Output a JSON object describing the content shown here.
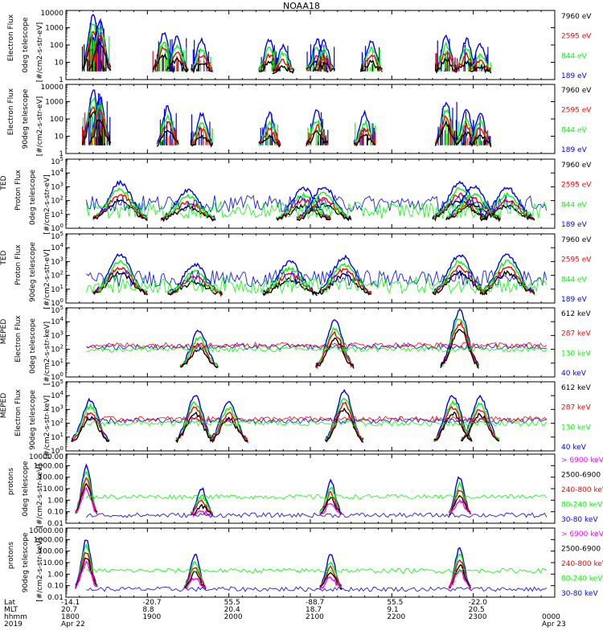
{
  "title": "NOAA18",
  "colors": {
    "blue": "#0000ff",
    "red": "#ff0000",
    "green": "#00ff00",
    "black": "#000000",
    "magenta": "#ff00ff",
    "orange": "#ff8c00"
  },
  "chart_data": [
    {
      "type": "scatter",
      "panel": "ted-electron-0deg",
      "ylabel": [
        "Electron Flux",
        "0deg telescope",
        "[#/cm2-s-str-eV]"
      ],
      "yscale": "log",
      "ylim": [
        1,
        10000
      ],
      "ytick_labels": [
        "1",
        "10",
        "100",
        "1000",
        "10000"
      ],
      "legend": [
        {
          "name": "7960 eV",
          "color": "black"
        },
        {
          "name": "2595 eV",
          "color": "red"
        },
        {
          "name": "844 eV",
          "color": "green"
        },
        {
          "name": "189 eV",
          "color": "blue"
        }
      ],
      "bursts": [
        {
          "t": "18:20",
          "peak": 5000
        },
        {
          "t": "18:25",
          "peak": 3000
        },
        {
          "t": "19:12",
          "peak": 500
        },
        {
          "t": "19:22",
          "peak": 300
        },
        {
          "t": "19:40",
          "peak": 200
        },
        {
          "t": "20:30",
          "peak": 200
        },
        {
          "t": "20:40",
          "peak": 100
        },
        {
          "t": "21:05",
          "peak": 200
        },
        {
          "t": "21:10",
          "peak": 150
        },
        {
          "t": "21:45",
          "peak": 200
        },
        {
          "t": "22:40",
          "peak": 300
        },
        {
          "t": "22:55",
          "peak": 200
        },
        {
          "t": "23:05",
          "peak": 100
        }
      ]
    },
    {
      "type": "scatter",
      "panel": "ted-electron-90deg",
      "ylabel": [
        "Electron Flux",
        "90deg telescope",
        "[#/cm2-s-str-eV]"
      ],
      "yscale": "log",
      "ylim": [
        1,
        10000
      ],
      "ytick_labels": [
        "1",
        "10",
        "100",
        "1000",
        "10000"
      ],
      "legend": [
        {
          "name": "7960 eV",
          "color": "black"
        },
        {
          "name": "2595 eV",
          "color": "red"
        },
        {
          "name": "844 eV",
          "color": "green"
        },
        {
          "name": "189 eV",
          "color": "blue"
        }
      ],
      "bursts": [
        {
          "t": "18:20",
          "peak": 5000
        },
        {
          "t": "18:25",
          "peak": 2000
        },
        {
          "t": "19:15",
          "peak": 500
        },
        {
          "t": "19:40",
          "peak": 200
        },
        {
          "t": "20:30",
          "peak": 200
        },
        {
          "t": "21:05",
          "peak": 300
        },
        {
          "t": "21:40",
          "peak": 200
        },
        {
          "t": "22:40",
          "peak": 1000
        },
        {
          "t": "22:55",
          "peak": 300
        },
        {
          "t": "23:05",
          "peak": 200
        }
      ]
    },
    {
      "type": "line",
      "panel": "ted-proton-0deg",
      "ylabel": [
        "TED",
        "Proton Flux",
        "0deg telescope",
        "[#/cm2-s-str-eV]"
      ],
      "yscale": "log",
      "ylim": [
        1,
        100000
      ],
      "ytick_labels": [
        "10^0",
        "10^1",
        "10^2",
        "10^3",
        "10^4",
        "10^5"
      ],
      "legend": [
        {
          "name": "7960 eV",
          "color": "black"
        },
        {
          "name": "2595 eV",
          "color": "red"
        },
        {
          "name": "844 eV",
          "color": "green"
        },
        {
          "name": "189 eV",
          "color": "blue"
        }
      ],
      "bursts": [
        {
          "t": "18:40",
          "peak": 2000
        },
        {
          "t": "19:30",
          "peak": 600
        },
        {
          "t": "20:55",
          "peak": 800
        },
        {
          "t": "21:10",
          "peak": 1000
        },
        {
          "t": "22:50",
          "peak": 2000
        },
        {
          "t": "23:00",
          "peak": 1000
        },
        {
          "t": "23:25",
          "peak": 800
        }
      ]
    },
    {
      "type": "line",
      "panel": "ted-proton-90deg",
      "ylabel": [
        "TED",
        "Proton Flux",
        "90deg telescope",
        "[#/cm2-s-str-eV]"
      ],
      "yscale": "log",
      "ylim": [
        1,
        100000
      ],
      "ytick_labels": [
        "10^0",
        "10^1",
        "10^2",
        "10^3",
        "10^4",
        "10^5"
      ],
      "legend": [
        {
          "name": "7960 eV",
          "color": "black"
        },
        {
          "name": "2595 eV",
          "color": "red"
        },
        {
          "name": "844 eV",
          "color": "green"
        },
        {
          "name": "189 eV",
          "color": "blue"
        }
      ],
      "bursts": [
        {
          "t": "18:40",
          "peak": 3000
        },
        {
          "t": "19:35",
          "peak": 600
        },
        {
          "t": "20:45",
          "peak": 1000
        },
        {
          "t": "21:25",
          "peak": 2000
        },
        {
          "t": "22:50",
          "peak": 3000
        },
        {
          "t": "23:25",
          "peak": 3000
        }
      ]
    },
    {
      "type": "line",
      "panel": "meped-electron-0deg",
      "ylabel": [
        "MEPED",
        "Electron Flux",
        "0deg telescope",
        "[#/cm2-s-str-keV]"
      ],
      "yscale": "log",
      "ylim": [
        1,
        100000
      ],
      "ytick_labels": [
        "10^0",
        "10^1",
        "10^2",
        "10^3",
        "10^4",
        "10^5"
      ],
      "legend": [
        {
          "name": "612 keV",
          "color": "black"
        },
        {
          "name": "287 keV",
          "color": "red"
        },
        {
          "name": "130 keV",
          "color": "green"
        },
        {
          "name": "40 keV",
          "color": "blue"
        }
      ],
      "bursts": [
        {
          "t": "19:38",
          "peak": 2000
        },
        {
          "t": "21:18",
          "peak": 10000
        },
        {
          "t": "22:50",
          "peak": 60000
        }
      ]
    },
    {
      "type": "line",
      "panel": "meped-electron-90deg",
      "ylabel": [
        "MEPED",
        "Electron Flux",
        "90deg telescope",
        "[#/cm2-s-str-keV]"
      ],
      "yscale": "log",
      "ylim": [
        1,
        100000
      ],
      "ytick_labels": [
        "10^0",
        "10^1",
        "10^2",
        "10^3",
        "10^4",
        "10^5"
      ],
      "legend": [
        {
          "name": "612 keV",
          "color": "black"
        },
        {
          "name": "287 keV",
          "color": "red"
        },
        {
          "name": "130 keV",
          "color": "green"
        },
        {
          "name": "40 keV",
          "color": "blue"
        }
      ],
      "bursts": [
        {
          "t": "18:18",
          "peak": 5000
        },
        {
          "t": "19:35",
          "peak": 10000
        },
        {
          "t": "20:00",
          "peak": 4000
        },
        {
          "t": "21:25",
          "peak": 20000
        },
        {
          "t": "22:45",
          "peak": 10000
        },
        {
          "t": "23:05",
          "peak": 8000
        }
      ]
    },
    {
      "type": "line",
      "panel": "meped-proton-0deg",
      "ylabel": [
        "protons",
        "0deg telescope",
        "[#/cm2-s-str-keV]"
      ],
      "yscale": "log",
      "ylim": [
        0.01,
        10000
      ],
      "ytick_labels": [
        "0.01",
        "0.10",
        "1.00",
        "10.00",
        "100.00",
        "1000.00",
        "10000.00"
      ],
      "legend": [
        {
          "name": "> 6900 keV",
          "color": "magenta"
        },
        {
          "name": "2500-6900",
          "color": "black"
        },
        {
          "name": "240-800 keV",
          "color": "red"
        },
        {
          "name": "80-240 keV",
          "color": "green"
        },
        {
          "name": "30-80 keV",
          "color": "blue"
        }
      ],
      "bursts": [
        {
          "t": "18:15",
          "peak": 1000
        },
        {
          "t": "19:40",
          "peak": 10
        },
        {
          "t": "21:15",
          "peak": 50
        },
        {
          "t": "22:50",
          "peak": 100
        }
      ]
    },
    {
      "type": "line",
      "panel": "meped-proton-90deg",
      "ylabel": [
        "protons",
        "90deg telescope",
        "[#/cm2-s-str-keV]"
      ],
      "yscale": "log",
      "ylim": [
        0.01,
        10000
      ],
      "ytick_labels": [
        "0.01",
        "0.10",
        "1.00",
        "10.00",
        "100.00",
        "1000.00",
        "10000.00"
      ],
      "legend": [
        {
          "name": "> 6900 keV",
          "color": "magenta"
        },
        {
          "name": "2500-6900",
          "color": "black"
        },
        {
          "name": "240-800 keV",
          "color": "red"
        },
        {
          "name": "80-240 keV",
          "color": "green"
        },
        {
          "name": "30-80 keV",
          "color": "blue"
        }
      ],
      "bursts": [
        {
          "t": "18:15",
          "peak": 1000
        },
        {
          "t": "19:35",
          "peak": 50
        },
        {
          "t": "21:15",
          "peak": 50
        },
        {
          "t": "22:50",
          "peak": 200
        }
      ]
    }
  ],
  "x_axis": {
    "range": [
      "18:00",
      "24:00"
    ],
    "row_labels": [
      "Lat",
      "MLT",
      "hhmm",
      "2019"
    ],
    "columns": [
      {
        "lat": "-14.1",
        "mlt": "20.7",
        "hhmm": "1800",
        "date": "Apr 22"
      },
      {
        "lat": "-20.7",
        "mlt": "8.8",
        "hhmm": "1900",
        "date": ""
      },
      {
        "lat": "55.5",
        "mlt": "20.4",
        "hhmm": "2000",
        "date": ""
      },
      {
        "lat": "-88.7",
        "mlt": "18.7",
        "hhmm": "2100",
        "date": ""
      },
      {
        "lat": "55.5",
        "mlt": "9.1",
        "hhmm": "2200",
        "date": ""
      },
      {
        "lat": "-22.0",
        "mlt": "20.5",
        "hhmm": "2300",
        "date": ""
      },
      {
        "lat": "",
        "mlt": "",
        "hhmm": "0000",
        "date": "Apr 23"
      }
    ]
  }
}
